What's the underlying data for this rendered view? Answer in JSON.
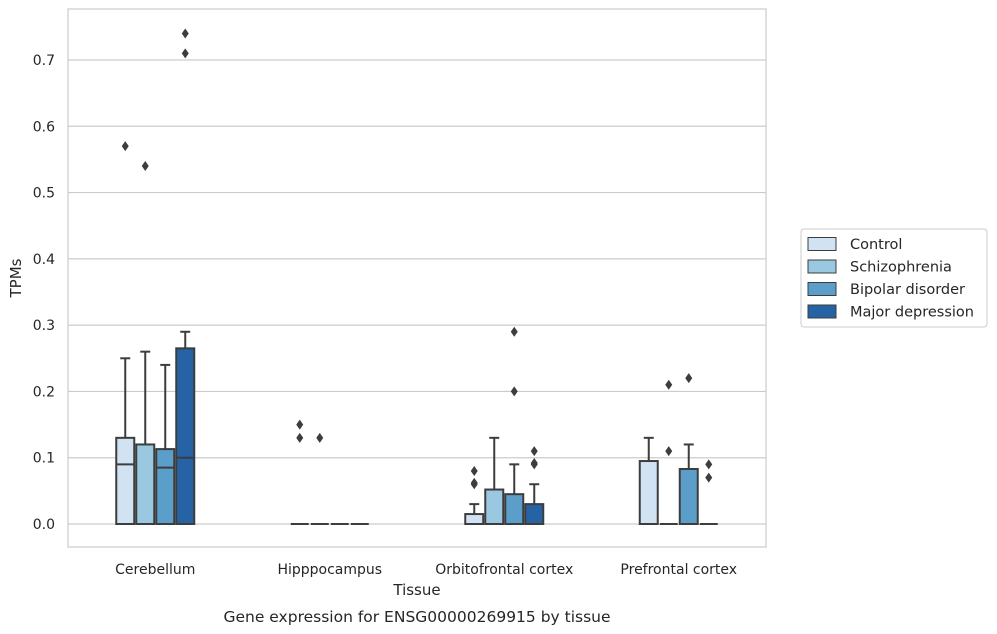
{
  "chart_data": {
    "type": "box",
    "title": "",
    "caption": "Gene expression for ENSG00000269915 by tissue",
    "xlabel": "Tissue",
    "ylabel": "TPMs",
    "ylim": [
      -0.035,
      0.78
    ],
    "yticks": [
      "0.0",
      "0.1",
      "0.2",
      "0.3",
      "0.4",
      "0.5",
      "0.6",
      "0.7"
    ],
    "grid": "horizontal",
    "legend_position": "right",
    "categories": [
      "Cerebellum",
      "Hipppocampus",
      "Orbitofrontal cortex",
      "Prefrontal cortex"
    ],
    "series": [
      {
        "name": "Control",
        "color": "#d1e2f2",
        "boxes": [
          {
            "q1": 0,
            "median": 0.09,
            "q3": 0.13,
            "whisker_low": 0,
            "whisker_high": 0.25,
            "outliers": [
              0.57
            ]
          },
          {
            "q1": 0,
            "median": 0,
            "q3": 0,
            "whisker_low": 0,
            "whisker_high": 0,
            "outliers": [
              0.13,
              0.15
            ]
          },
          {
            "q1": 0,
            "median": 0,
            "q3": 0.015,
            "whisker_low": 0,
            "whisker_high": 0.03,
            "outliers": [
              0.06,
              0.062,
              0.08
            ]
          },
          {
            "q1": 0,
            "median": 0,
            "q3": 0.095,
            "whisker_low": 0,
            "whisker_high": 0.13,
            "outliers": []
          }
        ]
      },
      {
        "name": "Schizophrenia",
        "color": "#9ac8e0",
        "boxes": [
          {
            "q1": 0,
            "median": 0,
            "q3": 0.12,
            "whisker_low": 0,
            "whisker_high": 0.26,
            "outliers": [
              0.54
            ]
          },
          {
            "q1": 0,
            "median": 0,
            "q3": 0,
            "whisker_low": 0,
            "whisker_high": 0,
            "outliers": [
              0.13
            ]
          },
          {
            "q1": 0,
            "median": 0,
            "q3": 0.052,
            "whisker_low": 0,
            "whisker_high": 0.13,
            "outliers": []
          },
          {
            "q1": 0,
            "median": 0,
            "q3": 0,
            "whisker_low": 0,
            "whisker_high": 0,
            "outliers": [
              0.11,
              0.21
            ]
          }
        ]
      },
      {
        "name": "Bipolar disorder",
        "color": "#5a9ec9",
        "boxes": [
          {
            "q1": 0,
            "median": 0.085,
            "q3": 0.113,
            "whisker_low": 0,
            "whisker_high": 0.24,
            "outliers": []
          },
          {
            "q1": 0,
            "median": 0,
            "q3": 0,
            "whisker_low": 0,
            "whisker_high": 0,
            "outliers": []
          },
          {
            "q1": 0,
            "median": 0,
            "q3": 0.045,
            "whisker_low": 0,
            "whisker_high": 0.09,
            "outliers": [
              0.2,
              0.29
            ]
          },
          {
            "q1": 0,
            "median": 0,
            "q3": 0.083,
            "whisker_low": 0,
            "whisker_high": 0.12,
            "outliers": [
              0.22
            ]
          }
        ]
      },
      {
        "name": "Major depression",
        "color": "#2563a5",
        "boxes": [
          {
            "q1": 0,
            "median": 0.1,
            "q3": 0.265,
            "whisker_low": 0,
            "whisker_high": 0.29,
            "outliers": [
              0.71,
              0.74
            ]
          },
          {
            "q1": 0,
            "median": 0,
            "q3": 0,
            "whisker_low": 0,
            "whisker_high": 0,
            "outliers": []
          },
          {
            "q1": 0,
            "median": 0,
            "q3": 0.03,
            "whisker_low": 0,
            "whisker_high": 0.06,
            "outliers": [
              0.09,
              0.092,
              0.11
            ]
          },
          {
            "q1": 0,
            "median": 0,
            "q3": 0,
            "whisker_low": 0,
            "whisker_high": 0,
            "outliers": [
              0.07,
              0.09
            ]
          }
        ]
      }
    ]
  }
}
